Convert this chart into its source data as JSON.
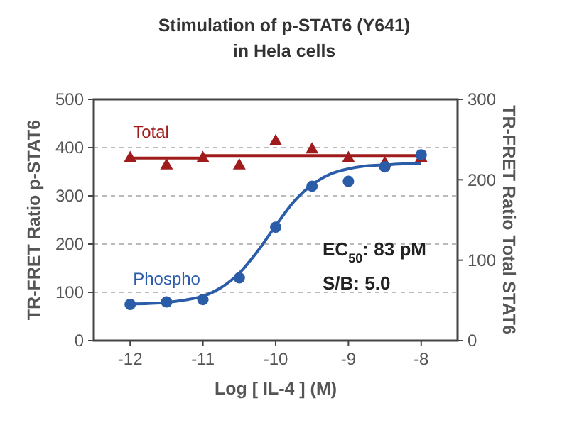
{
  "chart_data": {
    "type": "scatter",
    "title": "Stimulation of p-STAT6 (Y641)",
    "subtitle": "in Hela cells",
    "xlabel": "Log [ IL-4 ] (M)",
    "ylabel": "TR-FRET Ratio p-STAT6",
    "y2label": "TR-FRET Ratio Total STAT6",
    "x": [
      -12,
      -11.5,
      -11,
      -10.5,
      -10,
      -9.5,
      -9,
      -8.5,
      -8
    ],
    "series": [
      {
        "name": "Total",
        "type": "scatter",
        "axis": "y2",
        "color": "#a01c1c",
        "marker": "triangle",
        "values": [
          228,
          219,
          228,
          219,
          249,
          239,
          228,
          222,
          228
        ]
      },
      {
        "type": "line",
        "axis": "y2",
        "color": "#a01c1c",
        "marker": "none",
        "x": [
          -12,
          -11,
          -11,
          -8
        ],
        "values": [
          227,
          227,
          230,
          230
        ]
      },
      {
        "name": "Phospho",
        "type": "scatter",
        "color": "#2a5ca8",
        "marker": "circle",
        "values": [
          75,
          80,
          85,
          130,
          235,
          320,
          330,
          360,
          385
        ]
      },
      {
        "type": "line",
        "color": "#2a5ca8",
        "marker": "none",
        "x": [
          -12,
          -11.75,
          -11.5,
          -11.25,
          -11,
          -10.75,
          -10.5,
          -10.25,
          -10,
          -9.75,
          -9.5,
          -9.25,
          -9,
          -8.75,
          -8.5,
          -8.25,
          -8
        ],
        "values": [
          76,
          77,
          79,
          84,
          92,
          110,
          140,
          185,
          238,
          288,
          323,
          345,
          356,
          362,
          364,
          366,
          366
        ]
      }
    ],
    "xlim": [
      -12.5,
      -7.5
    ],
    "xticks": [
      -12,
      -11,
      -10,
      -9,
      -8
    ],
    "ylim": [
      0,
      500
    ],
    "yticks": [
      0,
      100,
      200,
      300,
      400,
      500
    ],
    "y2lim": [
      0,
      300
    ],
    "y2ticks": [
      0,
      100,
      200,
      300
    ],
    "grid": "y",
    "annotations": [
      "EC$_{50}$: 83 pM",
      "S/B: 5.0"
    ]
  }
}
